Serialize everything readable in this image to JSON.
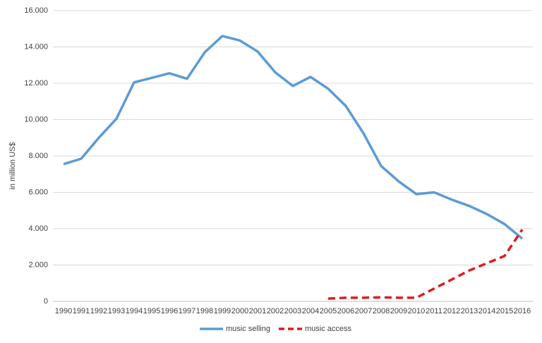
{
  "chart_data": {
    "type": "line",
    "y_label": "in million US$",
    "categories": [
      "1990",
      "1991",
      "1992",
      "1993",
      "1994",
      "1995",
      "1996",
      "1997",
      "1998",
      "1999",
      "2000",
      "2001",
      "2002",
      "2003",
      "2004",
      "2005",
      "2006",
      "2007",
      "2008",
      "2009",
      "2010",
      "2011",
      "2012",
      "2013",
      "2014",
      "2015",
      "2016"
    ],
    "series": [
      {
        "name": "music selling",
        "color": "#5b9bd5",
        "style": "solid",
        "values": [
          7550,
          7850,
          9000,
          10050,
          12050,
          12300,
          12550,
          12250,
          13700,
          14600,
          14350,
          13750,
          12600,
          11850,
          12350,
          11700,
          10750,
          9250,
          7450,
          6600,
          5900,
          6000,
          5600,
          5250,
          4800,
          4250,
          3450
        ]
      },
      {
        "name": "music access",
        "color": "#e31a1c",
        "style": "dashed",
        "values": [
          null,
          null,
          null,
          null,
          null,
          null,
          null,
          null,
          null,
          null,
          null,
          null,
          null,
          null,
          null,
          150,
          200,
          200,
          220,
          200,
          200,
          700,
          1200,
          1700,
          2100,
          2500,
          3950
        ]
      }
    ],
    "ylim": [
      0,
      16000
    ],
    "yticks": [
      0,
      {
        "value": 2000,
        "label": "2.000"
      },
      {
        "value": 4000,
        "label": "4.000"
      },
      {
        "value": 6000,
        "label": "6.000"
      },
      {
        "value": 8000,
        "label": "8.000"
      },
      {
        "value": 10000,
        "label": "10.000"
      },
      {
        "value": 12000,
        "label": "12.000"
      },
      {
        "value": 14000,
        "label": "14.000"
      },
      {
        "value": 16000,
        "label": "16.000"
      }
    ],
    "grid": true,
    "legend": "bottom"
  }
}
